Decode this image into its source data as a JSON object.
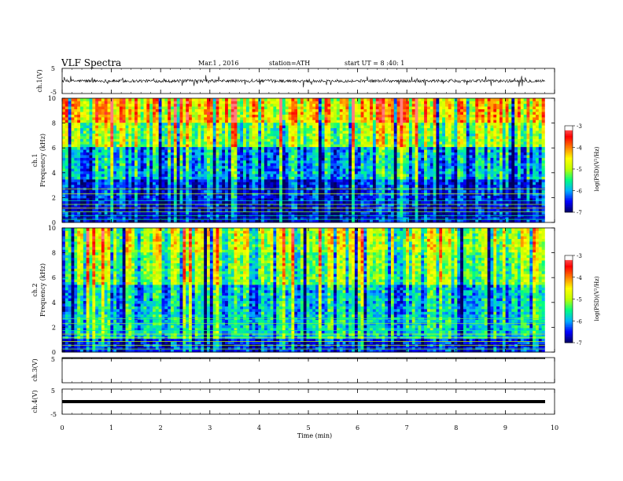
{
  "header": {
    "title": "VLF  Spectra",
    "date": "Mar.1  , 2016",
    "station": "station=ATH",
    "start": "start  UT  =   8  :40:  1"
  },
  "chart_data": {
    "type": "heatmap",
    "x_axis": {
      "label": "Time  (min)",
      "range": [
        0,
        10
      ],
      "ticks": [
        "0",
        "1",
        "2",
        "3",
        "4",
        "5",
        "6",
        "7",
        "8",
        "9",
        "10"
      ],
      "data_extent_min": 9.8
    },
    "panels": [
      {
        "type": "line",
        "ylabel": "ch.1(V)",
        "ylim": [
          -5,
          5
        ],
        "ticks": [
          "5",
          "-5"
        ],
        "description_values": {
          "baseline": 0.0,
          "typical_amplitude": 0.6,
          "spike_max": 2.5
        },
        "line_color": "#000000"
      },
      {
        "type": "heatmap",
        "ylabel_channel": "ch.1",
        "ylabel": "Frequency  (kHz)",
        "ylim": [
          0,
          10
        ],
        "ticks": [
          "10",
          "8",
          "6",
          "4",
          "2",
          "0"
        ],
        "colorbar": {
          "label": "log(PSD)(V²/Hz)",
          "range": [
            -7,
            -3
          ],
          "ticks": [
            "-3",
            "-4",
            "-5",
            "-6",
            "-7"
          ]
        },
        "band_levels_by_freq_kHz": [
          {
            "f": [
              0,
              1.8
            ],
            "level": -6.6
          },
          {
            "f": [
              1.8,
              3.5
            ],
            "level": -6.4
          },
          {
            "f": [
              3.5,
              6
            ],
            "level": -5.9
          },
          {
            "f": [
              6,
              8
            ],
            "level": -5.0
          },
          {
            "f": [
              8,
              10
            ],
            "level": -4.3
          }
        ]
      },
      {
        "type": "heatmap",
        "ylabel_channel": "ch.2",
        "ylabel": "Frequency  (kHz)",
        "ylim": [
          0,
          10
        ],
        "ticks": [
          "10",
          "8",
          "6",
          "4",
          "2",
          "0"
        ],
        "colorbar": {
          "label": "log(PSD)(V²/Hz)",
          "range": [
            -7,
            -3
          ],
          "ticks": [
            "-3",
            "-4",
            "-5",
            "-6",
            "-7"
          ]
        },
        "band_levels_by_freq_kHz": [
          {
            "f": [
              0,
              1.0
            ],
            "level": -6.5
          },
          {
            "f": [
              1.0,
              3.0
            ],
            "level": -5.8
          },
          {
            "f": [
              3.0,
              5.5
            ],
            "level": -5.9
          },
          {
            "f": [
              5.5,
              8
            ],
            "level": -5.3
          },
          {
            "f": [
              8,
              10
            ],
            "level": -5.0
          }
        ]
      },
      {
        "type": "line",
        "ylabel": "ch.3(V)",
        "ylim": [
          -5,
          5
        ],
        "ticks": [
          "5"
        ],
        "description_values": {
          "baseline": 5.0
        }
      },
      {
        "type": "line",
        "ylabel": "ch.4(V)",
        "ylim": [
          -5,
          5
        ],
        "ticks": [
          "5",
          "-5"
        ],
        "description_values": {
          "baseline": 0.0
        }
      }
    ]
  },
  "colors": {
    "colormap": [
      "#000060",
      "#0000ff",
      "#00b0ff",
      "#00ff80",
      "#c0ff00",
      "#ffff00",
      "#ff8000",
      "#ff0000",
      "#ff8080",
      "#ffffff"
    ]
  }
}
